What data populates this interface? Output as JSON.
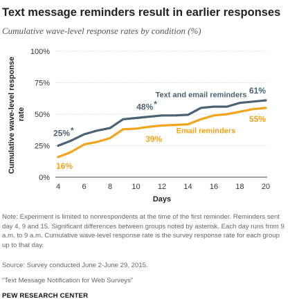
{
  "title": "Text message reminders result in earlier responses",
  "subtitle": "Cumulative wave-level response rates by condition (%)",
  "chart_data": {
    "type": "line",
    "xlabel": "Days",
    "ylabel": "Cumulative wave-level response rate",
    "x": [
      4,
      5,
      6,
      7,
      8,
      9,
      10,
      11,
      12,
      13,
      14,
      15,
      16,
      17,
      18,
      19,
      20
    ],
    "x_ticks": [
      4,
      6,
      8,
      10,
      12,
      14,
      16,
      18,
      20
    ],
    "xlim": [
      4,
      20
    ],
    "y_ticks": [
      "0%",
      "25%",
      "50%",
      "75%",
      "100%"
    ],
    "ylim": [
      0,
      100
    ],
    "grid": "horizontal",
    "series": [
      {
        "name": "Text and email reminders",
        "color": "#4a6374",
        "values": [
          25,
          29,
          34,
          37,
          39,
          46,
          47,
          48,
          49,
          49,
          49.5,
          55,
          56,
          56,
          59,
          60,
          61
        ]
      },
      {
        "name": "Email reminders",
        "color": "#f2a41c",
        "values": [
          16,
          20,
          26,
          28,
          31,
          38,
          38.5,
          40,
          41,
          41.5,
          42,
          46,
          49,
          50,
          52,
          54,
          55
        ]
      }
    ],
    "annotations": [
      {
        "label": "25%",
        "marker": "*"
      },
      {
        "label": "48%",
        "marker": "*"
      },
      {
        "label": "61%"
      },
      {
        "label": "16%"
      },
      {
        "label": "39%"
      },
      {
        "label": "55%"
      }
    ]
  },
  "note": "Note: Experiment is limited to nonrespondents at the time of the first reminder. Reminders sent day 4, 9 and 15. Significant differences between groups noted by asterisk. Each day runs from 9 a.m. to 9 a.m. Cumulative wave-level response rate is the survey response rate for each group up to that day.",
  "source": "Source: Survey conducted June 2-June 29, 2015.",
  "report": "“Text Message Notification for Web Surveys”",
  "org": "PEW RESEARCH CENTER"
}
